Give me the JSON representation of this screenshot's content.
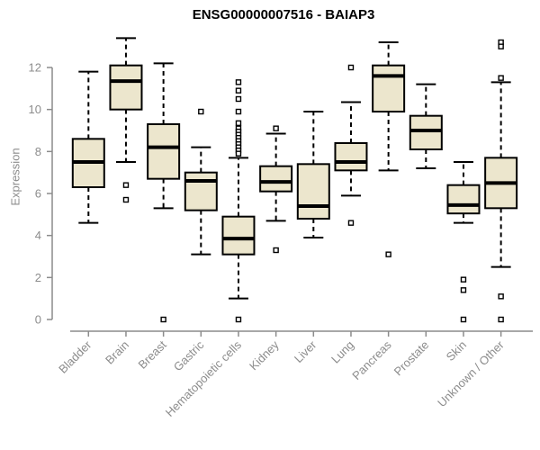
{
  "title": "ENSG00000007516 - BAIAP3",
  "chart_data": {
    "type": "boxplot",
    "title": "ENSG00000007516 - BAIAP3",
    "xlabel": "",
    "ylabel": "Expression",
    "ylim": [
      0,
      13.5
    ],
    "yticks": [
      0,
      2,
      4,
      6,
      8,
      10,
      12
    ],
    "grid": false,
    "legend": "none",
    "categories": [
      "Bladder",
      "Brain",
      "Breast",
      "Gastric",
      "Hematopoietic cells",
      "Kidney",
      "Liver",
      "Lung",
      "Pancreas",
      "Prostate",
      "Skin",
      "Unknown / Other"
    ],
    "groups": [
      {
        "label": "Bladder",
        "whisker_low": 4.6,
        "q1": 6.3,
        "median": 7.5,
        "q3": 8.6,
        "whisker_high": 11.8,
        "outliers": []
      },
      {
        "label": "Brain",
        "whisker_low": 7.5,
        "q1": 10.0,
        "median": 11.35,
        "q3": 12.1,
        "whisker_high": 13.4,
        "outliers": [
          6.4,
          5.7
        ]
      },
      {
        "label": "Breast",
        "whisker_low": 5.3,
        "q1": 6.7,
        "median": 8.2,
        "q3": 9.3,
        "whisker_high": 12.2,
        "outliers": [
          0
        ]
      },
      {
        "label": "Gastric",
        "whisker_low": 3.1,
        "q1": 5.2,
        "median": 6.6,
        "q3": 7.0,
        "whisker_high": 8.2,
        "outliers": [
          9.9
        ]
      },
      {
        "label": "Hematopoietic cells",
        "whisker_low": 1.0,
        "q1": 3.1,
        "median": 3.85,
        "q3": 4.9,
        "whisker_high": 7.7,
        "outliers": [
          11.3,
          10.9,
          10.5,
          9.9,
          9.35,
          9.1,
          8.95,
          8.8,
          8.65,
          8.5,
          8.35,
          8.2,
          8.05,
          7.9,
          0
        ]
      },
      {
        "label": "Kidney",
        "whisker_low": 4.7,
        "q1": 6.1,
        "median": 6.55,
        "q3": 7.3,
        "whisker_high": 8.85,
        "outliers": [
          9.1,
          3.3
        ]
      },
      {
        "label": "Liver",
        "whisker_low": 3.9,
        "q1": 4.8,
        "median": 5.4,
        "q3": 7.4,
        "whisker_high": 9.9,
        "outliers": []
      },
      {
        "label": "Lung",
        "whisker_low": 5.9,
        "q1": 7.1,
        "median": 7.5,
        "q3": 8.4,
        "whisker_high": 10.35,
        "outliers": [
          12.0,
          4.6
        ]
      },
      {
        "label": "Pancreas",
        "whisker_low": 7.1,
        "q1": 9.9,
        "median": 11.6,
        "q3": 12.1,
        "whisker_high": 13.2,
        "outliers": [
          3.1
        ]
      },
      {
        "label": "Prostate",
        "whisker_low": 7.2,
        "q1": 8.1,
        "median": 9.0,
        "q3": 9.7,
        "whisker_high": 11.2,
        "outliers": []
      },
      {
        "label": "Skin",
        "whisker_low": 4.6,
        "q1": 5.05,
        "median": 5.45,
        "q3": 6.4,
        "whisker_high": 7.5,
        "outliers": [
          1.9,
          1.4,
          0
        ]
      },
      {
        "label": "Unknown / Other",
        "whisker_low": 2.5,
        "q1": 5.3,
        "median": 6.5,
        "q3": 7.7,
        "whisker_high": 11.3,
        "outliers": [
          13.2,
          13.0,
          11.5,
          1.1,
          0
        ]
      }
    ]
  },
  "colors": {
    "box_fill": "#ece6cd",
    "box_stroke": "#000000",
    "median": "#000000",
    "whisker": "#000000",
    "outlier_fill": "#ffffff",
    "outlier_stroke": "#000000",
    "axis": "#8c8c8c",
    "tick_label": "#8c8c8c",
    "category_label": "#8c8c8c",
    "title": "#000000",
    "background": "#ffffff"
  }
}
